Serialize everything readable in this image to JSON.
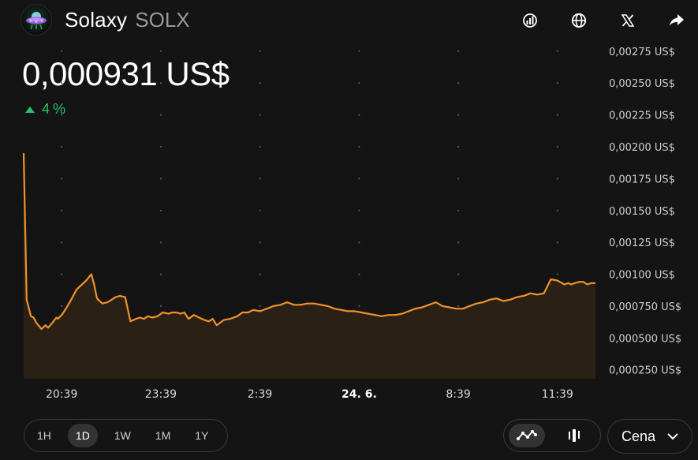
{
  "token": {
    "name": "Solaxy",
    "symbol": "SOLX",
    "logo_icon": "ufo-icon",
    "price": "0,000931 US$",
    "change_percent": "4",
    "change_symbol": "%",
    "change_direction": "up"
  },
  "header_actions": [
    {
      "name": "analytics-icon"
    },
    {
      "name": "globe-icon"
    },
    {
      "name": "x-logo-icon"
    },
    {
      "name": "share-icon"
    }
  ],
  "colors": {
    "background": "#141414",
    "line": "#f0922b",
    "area": "#2a2015",
    "positive": "#2bc16b"
  },
  "chart_data": {
    "type": "area",
    "title": "",
    "xlabel": "",
    "ylabel": "",
    "ylim": [
      0.00018,
      0.00278
    ],
    "y_ticks": [
      0.00025,
      0.0005,
      0.00075,
      0.001,
      0.00125,
      0.0015,
      0.00175,
      0.002,
      0.00225,
      0.0025,
      0.00275
    ],
    "y_tick_labels": [
      "0,000250 US$",
      "0,000500 US$",
      "0,000750 US$",
      "0,00100 US$",
      "0,00125 US$",
      "0,00150 US$",
      "0,00175 US$",
      "0,00200 US$",
      "0,00225 US$",
      "0,00250 US$",
      "0,00275 US$"
    ],
    "x_range": [
      19.5,
      36.8
    ],
    "x_ticks": [
      20.65,
      23.65,
      26.65,
      29.65,
      32.65,
      35.65
    ],
    "x_tick_labels": [
      "20:39",
      "23:39",
      "2:39",
      "24. 6.",
      "8:39",
      "11:39"
    ],
    "x_tick_bold": [
      false,
      false,
      false,
      true,
      false,
      false
    ],
    "grid": "dotted",
    "series": [
      {
        "x": [
          19.5,
          19.59,
          19.72,
          19.8,
          19.88,
          20.04,
          20.16,
          20.24,
          20.37,
          20.49,
          20.53,
          20.65,
          20.78,
          20.94,
          21.1,
          21.39,
          21.55,
          21.63,
          21.72,
          21.88,
          22.04,
          22.16,
          22.28,
          22.41,
          22.57,
          22.73,
          22.9,
          23.02,
          23.14,
          23.26,
          23.39,
          23.55,
          23.71,
          23.88,
          24.0,
          24.12,
          24.24,
          24.36,
          24.49,
          24.65,
          24.81,
          24.98,
          25.1,
          25.22,
          25.34,
          25.55,
          25.75,
          25.96,
          26.12,
          26.29,
          26.45,
          26.65,
          26.86,
          27.06,
          27.27,
          27.47,
          27.68,
          27.88,
          28.08,
          28.29,
          28.49,
          28.7,
          28.9,
          29.11,
          29.31,
          29.51,
          29.72,
          29.92,
          30.13,
          30.33,
          30.54,
          30.74,
          30.95,
          31.15,
          31.35,
          31.56,
          31.76,
          31.97,
          32.17,
          32.38,
          32.58,
          32.79,
          32.99,
          33.2,
          33.4,
          33.6,
          33.81,
          34.01,
          34.22,
          34.42,
          34.63,
          34.83,
          35.04,
          35.24,
          35.45,
          35.65,
          35.86,
          35.98,
          36.06,
          36.18,
          36.31,
          36.43,
          36.55,
          36.67,
          36.8
        ],
        "values": [
          0.00195,
          0.0008,
          0.00067,
          0.00066,
          0.00062,
          0.00057,
          0.0006,
          0.00058,
          0.00062,
          0.00066,
          0.00065,
          0.00068,
          0.00073,
          0.0008,
          0.00088,
          0.00095,
          0.001,
          0.00092,
          0.00081,
          0.00077,
          0.00078,
          0.0008,
          0.00082,
          0.00083,
          0.00082,
          0.00063,
          0.00065,
          0.00066,
          0.00065,
          0.00067,
          0.00066,
          0.00067,
          0.0007,
          0.00069,
          0.0007,
          0.0007,
          0.00069,
          0.0007,
          0.00065,
          0.00068,
          0.00066,
          0.00064,
          0.00063,
          0.00065,
          0.0006,
          0.00064,
          0.00065,
          0.00067,
          0.0007,
          0.0007,
          0.00072,
          0.00071,
          0.00073,
          0.00075,
          0.00076,
          0.00078,
          0.00076,
          0.00076,
          0.00077,
          0.00077,
          0.00076,
          0.00075,
          0.00073,
          0.00072,
          0.00071,
          0.00071,
          0.0007,
          0.00069,
          0.00068,
          0.00067,
          0.00068,
          0.00068,
          0.00069,
          0.00071,
          0.00073,
          0.00074,
          0.00076,
          0.00078,
          0.00075,
          0.00074,
          0.00073,
          0.00073,
          0.00075,
          0.00077,
          0.00078,
          0.0008,
          0.00081,
          0.00079,
          0.0008,
          0.00082,
          0.00083,
          0.00085,
          0.00084,
          0.00085,
          0.00096,
          0.00095,
          0.00092,
          0.00093,
          0.00092,
          0.00093,
          0.00094,
          0.00094,
          0.00092,
          0.00093,
          0.00093
        ]
      }
    ]
  },
  "time_ranges": [
    {
      "label": "1H",
      "active": false
    },
    {
      "label": "1D",
      "active": true
    },
    {
      "label": "1W",
      "active": false
    },
    {
      "label": "1M",
      "active": false
    },
    {
      "label": "1Y",
      "active": false
    }
  ],
  "chart_types": [
    {
      "name": "line-chart-icon",
      "active": true
    },
    {
      "name": "candlestick-icon",
      "active": false
    }
  ],
  "metric_select": {
    "value": "Cena"
  }
}
